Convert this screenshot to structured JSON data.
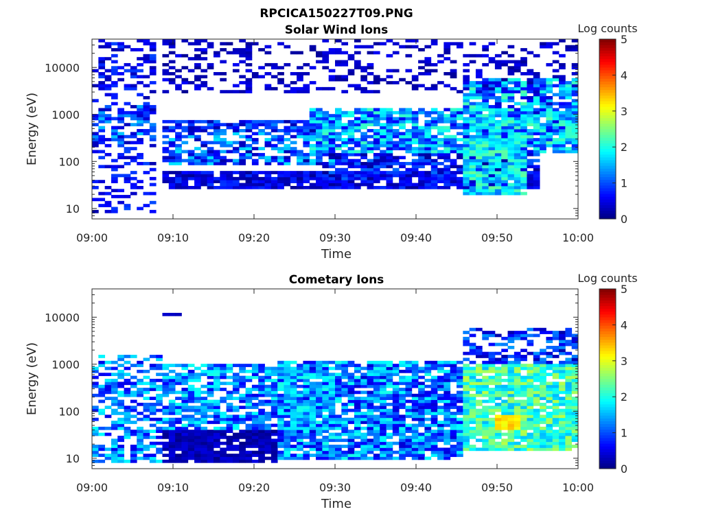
{
  "figure": {
    "title": "RPCICA150227T09.PNG"
  },
  "chart_data": [
    {
      "type": "heatmap",
      "title": "Solar Wind Ions",
      "xlabel": "Time",
      "ylabel": "Energy (eV)",
      "x_ticks": [
        "09:00",
        "09:10",
        "09:20",
        "09:30",
        "09:40",
        "09:50",
        "10:00"
      ],
      "xlim": [
        "09:00",
        "10:00"
      ],
      "y_scale": "log",
      "ylim": [
        6,
        40000
      ],
      "y_ticks": [
        10,
        100,
        1000,
        10000
      ],
      "colorbar": {
        "label": "Log counts",
        "range": [
          0,
          5
        ],
        "ticks": [
          0,
          1,
          2,
          3,
          4,
          5
        ],
        "colormap": "jet"
      },
      "value_description": "Log counts vs time (minutes after 09:00) and energy (eV)",
      "features": [
        {
          "t_start": 0,
          "t_end": 8,
          "e_low": 8,
          "e_high": 40000,
          "log_counts": [
            0.2,
            1.0
          ],
          "density": 0.35
        },
        {
          "t_start": 0,
          "t_end": 8,
          "e_low": 250,
          "e_high": 1500,
          "log_counts": [
            0.3,
            1.6
          ],
          "density": 0.55
        },
        {
          "t_start": 9,
          "t_end": 55,
          "e_low": 25,
          "e_high": 60,
          "log_counts": [
            0.1,
            0.9
          ],
          "density": 0.85
        },
        {
          "t_start": 9,
          "t_end": 30,
          "e_low": 400,
          "e_high": 800,
          "log_counts": [
            0.2,
            1.3
          ],
          "density": 0.85
        },
        {
          "t_start": 9,
          "t_end": 30,
          "e_low": 80,
          "e_high": 400,
          "log_counts": [
            0.2,
            1.8
          ],
          "density": 0.6
        },
        {
          "t_start": 27,
          "t_end": 60,
          "e_low": 150,
          "e_high": 1400,
          "log_counts": [
            0.5,
            2.2
          ],
          "density": 0.8
        },
        {
          "t_start": 28,
          "t_end": 55,
          "e_low": 40,
          "e_high": 150,
          "log_counts": [
            0.1,
            1.2
          ],
          "density": 0.7
        },
        {
          "t_start": 46,
          "t_end": 54,
          "e_low": 20,
          "e_high": 300,
          "log_counts": [
            1.2,
            2.4
          ],
          "density": 0.9
        },
        {
          "t_start": 46,
          "t_end": 60,
          "e_low": 200,
          "e_high": 6000,
          "log_counts": [
            0.3,
            2.3
          ],
          "density": 0.8
        },
        {
          "t_start": 9,
          "t_end": 60,
          "e_low": 3000,
          "e_high": 40000,
          "log_counts": [
            0.1,
            0.6
          ],
          "density": 0.3
        }
      ]
    },
    {
      "type": "heatmap",
      "title": "Cometary Ions",
      "xlabel": "Time",
      "ylabel": "Energy (eV)",
      "x_ticks": [
        "09:00",
        "09:10",
        "09:20",
        "09:30",
        "09:40",
        "09:50",
        "10:00"
      ],
      "xlim": [
        "09:00",
        "10:00"
      ],
      "y_scale": "log",
      "ylim": [
        6,
        40000
      ],
      "y_ticks": [
        10,
        100,
        1000,
        10000
      ],
      "colorbar": {
        "label": "Log counts",
        "range": [
          0,
          5
        ],
        "ticks": [
          0,
          1,
          2,
          3,
          4,
          5
        ],
        "colormap": "jet"
      },
      "value_description": "Log counts vs time (minutes after 09:00) and energy (eV)",
      "features": [
        {
          "t_start": 0,
          "t_end": 9,
          "e_low": 8,
          "e_high": 1500,
          "log_counts": [
            0.5,
            1.9
          ],
          "density": 0.5
        },
        {
          "t_start": 9,
          "t_end": 23,
          "e_low": 8,
          "e_high": 40,
          "log_counts": [
            0.05,
            0.5
          ],
          "density": 0.95
        },
        {
          "t_start": 9,
          "t_end": 30,
          "e_low": 40,
          "e_high": 1000,
          "log_counts": [
            0.5,
            2.0
          ],
          "density": 0.75
        },
        {
          "t_start": 23,
          "t_end": 46,
          "e_low": 10,
          "e_high": 1200,
          "log_counts": [
            0.4,
            2.0
          ],
          "density": 0.85
        },
        {
          "t_start": 46,
          "t_end": 60,
          "e_low": 15,
          "e_high": 1000,
          "log_counts": [
            1.5,
            2.8
          ],
          "density": 0.9
        },
        {
          "t_start": 50,
          "t_end": 53,
          "e_low": 40,
          "e_high": 80,
          "log_counts": [
            3.0,
            3.5
          ],
          "density": 1.0
        },
        {
          "t_start": 46,
          "t_end": 60,
          "e_low": 1000,
          "e_high": 6000,
          "log_counts": [
            0.2,
            1.4
          ],
          "density": 0.55
        },
        {
          "t_start": 9,
          "t_end": 11,
          "e_low": 10000,
          "e_high": 13000,
          "log_counts": [
            0.2,
            0.4
          ],
          "density": 1.0
        }
      ]
    }
  ]
}
